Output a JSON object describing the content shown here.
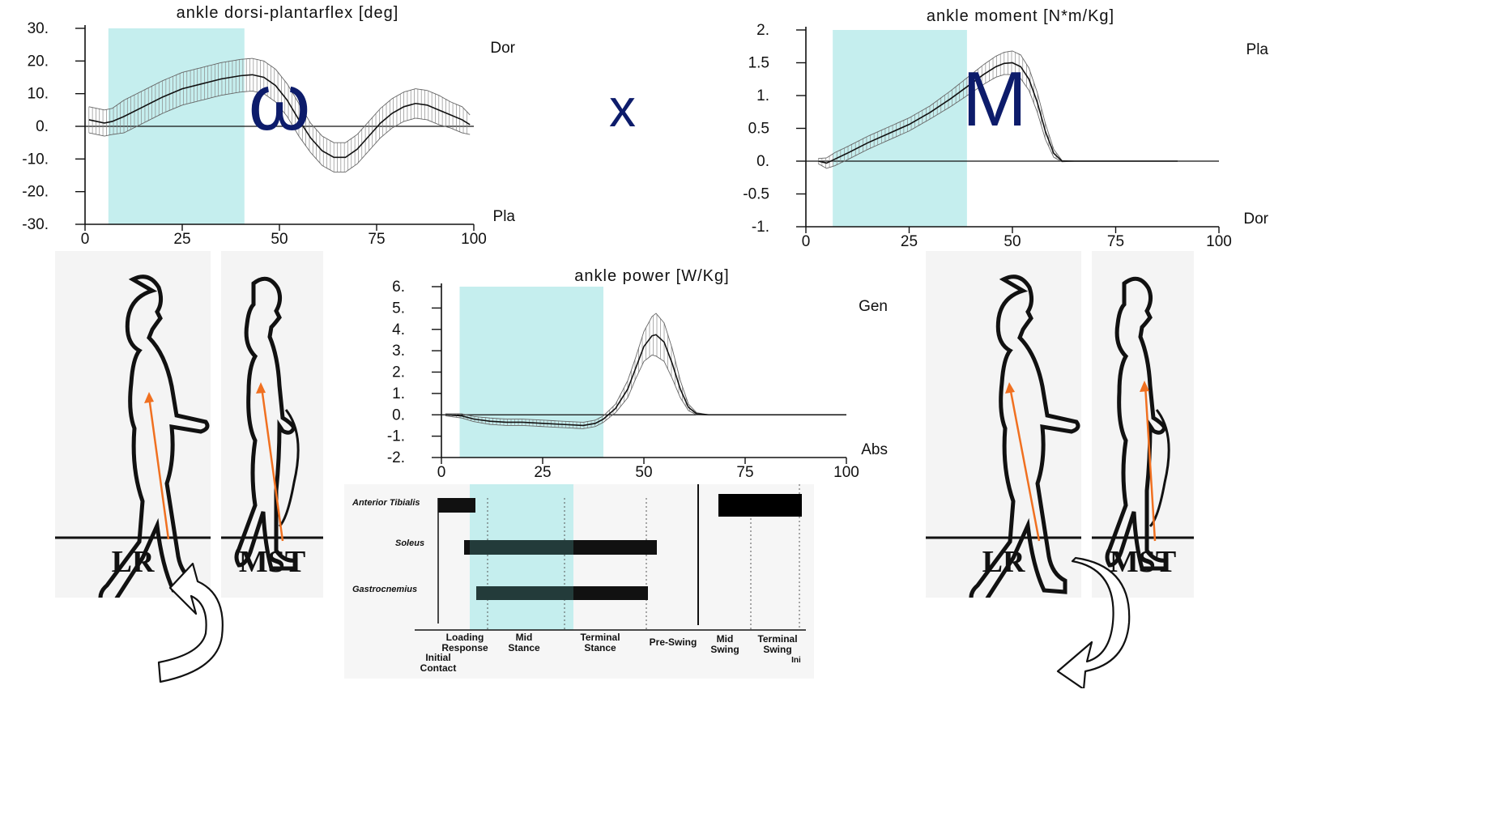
{
  "chart_data": [
    {
      "id": "angle",
      "type": "line",
      "title": "ankle dorsi-plantarflex [deg]",
      "overlay_symbol": "ω",
      "xlim": [
        0,
        100
      ],
      "ylim": [
        -30,
        30
      ],
      "xticks": [
        0,
        25,
        50,
        75,
        100
      ],
      "xtick_labels": [
        "0",
        "25",
        "50",
        "75",
        "100"
      ],
      "yticks": [
        30,
        20,
        10,
        0,
        -10,
        -20,
        -30
      ],
      "ytick_labels": [
        "30.",
        "20.",
        "10.",
        "0.",
        "-10.",
        "-20.",
        "-30."
      ],
      "top_label": "Dor",
      "bottom_label": "Pla",
      "highlight_x": [
        6,
        41
      ],
      "highlight_color": "#c5eeee",
      "series": [
        {
          "x": [
            1,
            3,
            5,
            7,
            10,
            15,
            20,
            25,
            30,
            35,
            40,
            43,
            46,
            49,
            52,
            55,
            58,
            61,
            64,
            67,
            70,
            73,
            76,
            79,
            82,
            85,
            88,
            91,
            94,
            97,
            99
          ],
          "y": [
            2,
            1.5,
            1,
            1.5,
            3,
            6,
            9,
            11.5,
            13,
            14.5,
            15.5,
            15.8,
            15,
            12.5,
            8,
            2,
            -3.5,
            -7.5,
            -9.5,
            -9.5,
            -7,
            -3,
            1,
            4,
            6,
            7,
            6.5,
            5,
            3.5,
            2,
            0.5
          ],
          "band": [
            4,
            4,
            4,
            4,
            5,
            5,
            5,
            5,
            5,
            5,
            5,
            5,
            5,
            5,
            5,
            5,
            4.5,
            4.5,
            4.5,
            4.5,
            4.5,
            4.5,
            4.5,
            4.5,
            4.5,
            4.5,
            4.5,
            4.5,
            4,
            4,
            3
          ]
        }
      ]
    },
    {
      "id": "moment",
      "type": "line",
      "title": "ankle moment [N*m/Kg]",
      "overlay_symbol": "M",
      "xlim": [
        0,
        100
      ],
      "ylim": [
        -1,
        2
      ],
      "xticks": [
        0,
        25,
        50,
        75,
        100
      ],
      "xtick_labels": [
        "0",
        "25",
        "50",
        "75",
        "100"
      ],
      "yticks": [
        2,
        1.5,
        1,
        0.5,
        0,
        -0.5,
        -1
      ],
      "ytick_labels": [
        "2.",
        "1.5",
        "1.",
        "0.5",
        "0.",
        "-0.5",
        "-1."
      ],
      "top_label": "Pla",
      "bottom_label": "Dor",
      "highlight_x": [
        6.5,
        39
      ],
      "highlight_color": "#c5eeee",
      "series": [
        {
          "x": [
            3,
            5,
            7,
            10,
            15,
            20,
            25,
            30,
            35,
            40,
            43,
            46,
            48,
            50,
            52,
            54,
            56,
            58,
            60,
            62,
            65,
            70,
            80,
            90
          ],
          "y": [
            0,
            -0.03,
            0.03,
            0.12,
            0.28,
            0.42,
            0.56,
            0.74,
            0.95,
            1.18,
            1.32,
            1.44,
            1.49,
            1.5,
            1.44,
            1.25,
            0.9,
            0.45,
            0.12,
            0,
            0,
            0,
            0,
            0
          ],
          "band": [
            0.04,
            0.08,
            0.1,
            0.1,
            0.1,
            0.1,
            0.1,
            0.1,
            0.12,
            0.14,
            0.15,
            0.16,
            0.17,
            0.18,
            0.18,
            0.17,
            0.15,
            0.12,
            0.06,
            0.01,
            0,
            0,
            0,
            0
          ]
        }
      ]
    },
    {
      "id": "power",
      "type": "line",
      "title": "ankle power [W/Kg]",
      "xlim": [
        0,
        100
      ],
      "ylim": [
        -2,
        6
      ],
      "xticks": [
        0,
        25,
        50,
        75,
        100
      ],
      "xtick_labels": [
        "0",
        "25",
        "50",
        "75",
        "100"
      ],
      "yticks": [
        6,
        5,
        4,
        3,
        2,
        1,
        0,
        -1,
        -2
      ],
      "ytick_labels": [
        "6.",
        "5.",
        "4.",
        "3.",
        "2.",
        "1.",
        "0.",
        "-1.",
        "-2."
      ],
      "top_label": "Gen",
      "bottom_label": "Abs",
      "highlight_x": [
        4.5,
        40
      ],
      "highlight_color": "#c5eeee",
      "series": [
        {
          "x": [
            1,
            5,
            8,
            12,
            16,
            20,
            25,
            30,
            35,
            38,
            40,
            43,
            46,
            48,
            50,
            52,
            53,
            55,
            57,
            59,
            61,
            63,
            66,
            70,
            80,
            90,
            100
          ],
          "y": [
            0,
            -0.05,
            -0.2,
            -0.3,
            -0.35,
            -0.35,
            -0.4,
            -0.45,
            -0.5,
            -0.4,
            -0.2,
            0.3,
            1.2,
            2.2,
            3.2,
            3.7,
            3.75,
            3.4,
            2.4,
            1.2,
            0.35,
            0.05,
            0,
            0,
            0,
            0,
            0
          ],
          "band": [
            0.05,
            0.1,
            0.12,
            0.15,
            0.15,
            0.15,
            0.15,
            0.15,
            0.15,
            0.15,
            0.15,
            0.2,
            0.4,
            0.5,
            0.7,
            0.9,
            1.0,
            0.9,
            0.7,
            0.4,
            0.15,
            0.05,
            0,
            0,
            0,
            0,
            0
          ]
        }
      ]
    }
  ],
  "multiply_symbol": "x",
  "emg": {
    "muscles": [
      {
        "name": "Anterior Tibialis",
        "bars": [
          [
            540,
            587
          ],
          [
            887,
            990
          ]
        ]
      },
      {
        "name": "Soleus",
        "bars": [
          [
            573,
            811
          ]
        ]
      },
      {
        "name": "Gastrocnemius",
        "bars": [
          [
            588,
            800
          ]
        ]
      }
    ],
    "phases": [
      {
        "label": [
          "Loading",
          "Response"
        ]
      },
      {
        "label": [
          "Mid",
          "Stance"
        ]
      },
      {
        "label": [
          "Terminal",
          "Stance"
        ]
      },
      {
        "label": [
          "Pre-Swing"
        ]
      },
      {
        "label": [
          "Mid",
          "Swing"
        ]
      },
      {
        "label": [
          "Terminal",
          "Swing"
        ]
      },
      {
        "label": [
          "Initial",
          "Contact"
        ]
      },
      {
        "label": [
          "Ini"
        ]
      }
    ],
    "highlight_color": "#c5eeee"
  },
  "figures": [
    {
      "label": "LR"
    },
    {
      "label": "MST"
    },
    {
      "label": "LR"
    },
    {
      "label": "MST"
    }
  ],
  "colors": {
    "highlight": "#c5eeee",
    "symbol": "#0d1c6b",
    "arrow": "#f07020",
    "line": "#111111",
    "band": "#8a8a8a"
  }
}
